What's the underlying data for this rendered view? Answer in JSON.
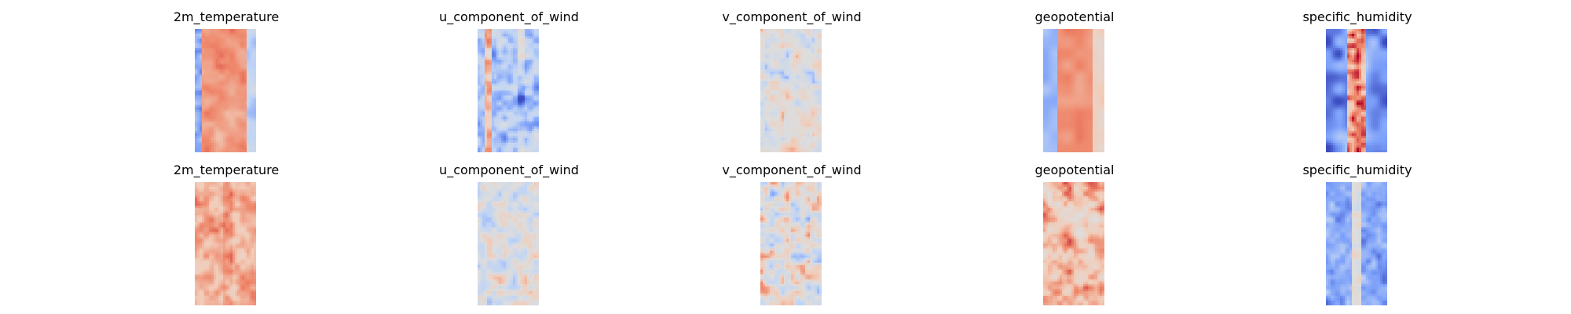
{
  "chart_data": {
    "type": "heatmap",
    "colormap": "coolwarm",
    "colormap_stops": [
      "#3b4cc0",
      "#7b9ff9",
      "#c0d4f5",
      "#dddddd",
      "#f2cbb7",
      "#ee8468",
      "#b40426"
    ],
    "layout": "2 rows x 5 columns",
    "axes_visible": false,
    "rows": [
      {
        "panels": [
          {
            "title": "2m_temperature",
            "pattern": "warm-core"
          },
          {
            "title": "u_component_of_wind",
            "pattern": "cool-bands"
          },
          {
            "title": "v_component_of_wind",
            "pattern": "neutral-speckle"
          },
          {
            "title": "geopotential",
            "pattern": "warm-core-cool-edges"
          },
          {
            "title": "specific_humidity",
            "pattern": "warm-spine-cool-edges"
          }
        ]
      },
      {
        "panels": [
          {
            "title": "2m_temperature",
            "pattern": "warm-noisy"
          },
          {
            "title": "u_component_of_wind",
            "pattern": "neutral-noisy"
          },
          {
            "title": "v_component_of_wind",
            "pattern": "mixed-noisy"
          },
          {
            "title": "geopotential",
            "pattern": "warm-noisy-patches"
          },
          {
            "title": "specific_humidity",
            "pattern": "cool-faint-spine"
          }
        ]
      }
    ]
  }
}
